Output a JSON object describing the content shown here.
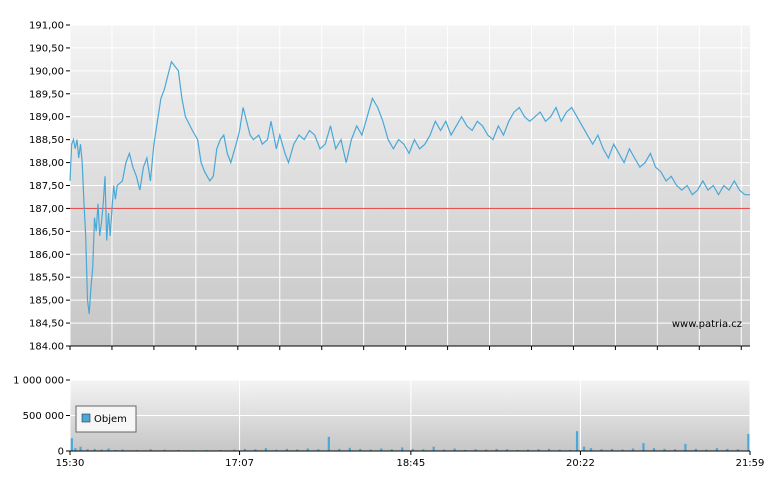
{
  "watermark": "www.patria.cz",
  "legend_label": "Objem",
  "colors": {
    "price_line": "#4aa8d8",
    "reference_line": "#e83a3a",
    "volume_bar": "#4aa8d8",
    "grid": "#ffffff",
    "plot_bg_top": "#f2f2f2",
    "plot_bg_bottom": "#c8c8c8"
  },
  "chart_data": [
    {
      "type": "line",
      "title": "",
      "xlabel": "",
      "ylabel": "",
      "ylim": [
        184.0,
        191.0
      ],
      "y_ticks": [
        "184.00",
        "184,50",
        "185,00",
        "185,50",
        "186,00",
        "186,50",
        "187,00",
        "187,50",
        "188,00",
        "188,50",
        "189,00",
        "189,50",
        "190,00",
        "190,50",
        "191,00"
      ],
      "y_tick_values": [
        184.0,
        184.5,
        185.0,
        185.5,
        186.0,
        186.5,
        187.0,
        187.5,
        188.0,
        188.5,
        189.0,
        189.5,
        190.0,
        190.5,
        191.0
      ],
      "x_ticks": [
        "15:30",
        "17:07",
        "18:45",
        "20:22",
        "21:59"
      ],
      "xlim": [
        "15:30",
        "21:59"
      ],
      "reference_line": 187.0,
      "grid": true,
      "series": [
        {
          "points": [
            [
              "15:30",
              187.6
            ],
            [
              "15:31",
              188.4
            ],
            [
              "15:32",
              188.5
            ],
            [
              "15:33",
              188.3
            ],
            [
              "15:34",
              188.5
            ],
            [
              "15:35",
              188.1
            ],
            [
              "15:36",
              188.4
            ],
            [
              "15:37",
              188.0
            ],
            [
              "15:38",
              187.1
            ],
            [
              "15:39",
              186.4
            ],
            [
              "15:40",
              185.0
            ],
            [
              "15:41",
              184.7
            ],
            [
              "15:42",
              185.3
            ],
            [
              "15:43",
              185.7
            ],
            [
              "15:44",
              186.8
            ],
            [
              "15:45",
              186.5
            ],
            [
              "15:46",
              187.1
            ],
            [
              "15:47",
              186.4
            ],
            [
              "15:48",
              186.7
            ],
            [
              "15:49",
              187.1
            ],
            [
              "15:50",
              187.7
            ],
            [
              "15:51",
              186.3
            ],
            [
              "15:52",
              186.9
            ],
            [
              "15:53",
              186.4
            ],
            [
              "15:54",
              187.0
            ],
            [
              "15:55",
              187.5
            ],
            [
              "15:56",
              187.2
            ],
            [
              "15:57",
              187.5
            ],
            [
              "16:00",
              187.6
            ],
            [
              "16:02",
              188.0
            ],
            [
              "16:04",
              188.2
            ],
            [
              "16:06",
              187.9
            ],
            [
              "16:08",
              187.7
            ],
            [
              "16:10",
              187.4
            ],
            [
              "16:12",
              187.9
            ],
            [
              "16:14",
              188.1
            ],
            [
              "16:16",
              187.6
            ],
            [
              "16:18",
              188.4
            ],
            [
              "16:20",
              188.9
            ],
            [
              "16:22",
              189.4
            ],
            [
              "16:24",
              189.6
            ],
            [
              "16:26",
              189.9
            ],
            [
              "16:28",
              190.2
            ],
            [
              "16:30",
              190.1
            ],
            [
              "16:32",
              190.0
            ],
            [
              "16:34",
              189.4
            ],
            [
              "16:36",
              189.0
            ],
            [
              "16:40",
              188.7
            ],
            [
              "16:43",
              188.5
            ],
            [
              "16:45",
              188.0
            ],
            [
              "16:47",
              187.8
            ],
            [
              "16:50",
              187.6
            ],
            [
              "16:52",
              187.7
            ],
            [
              "16:54",
              188.3
            ],
            [
              "16:56",
              188.5
            ],
            [
              "16:58",
              188.6
            ],
            [
              "17:00",
              188.2
            ],
            [
              "17:02",
              188.0
            ],
            [
              "17:05",
              188.4
            ],
            [
              "17:07",
              188.7
            ],
            [
              "17:09",
              189.2
            ],
            [
              "17:11",
              188.9
            ],
            [
              "17:13",
              188.6
            ],
            [
              "17:15",
              188.5
            ],
            [
              "17:18",
              188.6
            ],
            [
              "17:20",
              188.4
            ],
            [
              "17:23",
              188.5
            ],
            [
              "17:25",
              188.9
            ],
            [
              "17:28",
              188.3
            ],
            [
              "17:30",
              188.6
            ],
            [
              "17:33",
              188.2
            ],
            [
              "17:35",
              188.0
            ],
            [
              "17:38",
              188.4
            ],
            [
              "17:41",
              188.6
            ],
            [
              "17:44",
              188.5
            ],
            [
              "17:47",
              188.7
            ],
            [
              "17:50",
              188.6
            ],
            [
              "17:53",
              188.3
            ],
            [
              "17:56",
              188.4
            ],
            [
              "17:59",
              188.8
            ],
            [
              "18:02",
              188.3
            ],
            [
              "18:05",
              188.5
            ],
            [
              "18:08",
              188.0
            ],
            [
              "18:11",
              188.5
            ],
            [
              "18:14",
              188.8
            ],
            [
              "18:17",
              188.6
            ],
            [
              "18:20",
              189.0
            ],
            [
              "18:23",
              189.4
            ],
            [
              "18:26",
              189.2
            ],
            [
              "18:29",
              188.9
            ],
            [
              "18:32",
              188.5
            ],
            [
              "18:35",
              188.3
            ],
            [
              "18:38",
              188.5
            ],
            [
              "18:41",
              188.4
            ],
            [
              "18:44",
              188.2
            ],
            [
              "18:47",
              188.5
            ],
            [
              "18:50",
              188.3
            ],
            [
              "18:53",
              188.4
            ],
            [
              "18:56",
              188.6
            ],
            [
              "18:59",
              188.9
            ],
            [
              "19:02",
              188.7
            ],
            [
              "19:05",
              188.9
            ],
            [
              "19:08",
              188.6
            ],
            [
              "19:11",
              188.8
            ],
            [
              "19:14",
              189.0
            ],
            [
              "19:17",
              188.8
            ],
            [
              "19:20",
              188.7
            ],
            [
              "19:23",
              188.9
            ],
            [
              "19:26",
              188.8
            ],
            [
              "19:29",
              188.6
            ],
            [
              "19:32",
              188.5
            ],
            [
              "19:35",
              188.8
            ],
            [
              "19:38",
              188.6
            ],
            [
              "19:41",
              188.9
            ],
            [
              "19:44",
              189.1
            ],
            [
              "19:47",
              189.2
            ],
            [
              "19:50",
              189.0
            ],
            [
              "19:53",
              188.9
            ],
            [
              "19:56",
              189.0
            ],
            [
              "19:59",
              189.1
            ],
            [
              "20:02",
              188.9
            ],
            [
              "20:05",
              189.0
            ],
            [
              "20:08",
              189.2
            ],
            [
              "20:11",
              188.9
            ],
            [
              "20:14",
              189.1
            ],
            [
              "20:17",
              189.2
            ],
            [
              "20:20",
              189.0
            ],
            [
              "20:23",
              188.8
            ],
            [
              "20:26",
              188.6
            ],
            [
              "20:29",
              188.4
            ],
            [
              "20:32",
              188.6
            ],
            [
              "20:35",
              188.3
            ],
            [
              "20:38",
              188.1
            ],
            [
              "20:41",
              188.4
            ],
            [
              "20:44",
              188.2
            ],
            [
              "20:47",
              188.0
            ],
            [
              "20:50",
              188.3
            ],
            [
              "20:53",
              188.1
            ],
            [
              "20:56",
              187.9
            ],
            [
              "20:59",
              188.0
            ],
            [
              "21:02",
              188.2
            ],
            [
              "21:05",
              187.9
            ],
            [
              "21:08",
              187.8
            ],
            [
              "21:11",
              187.6
            ],
            [
              "21:14",
              187.7
            ],
            [
              "21:17",
              187.5
            ],
            [
              "21:20",
              187.4
            ],
            [
              "21:23",
              187.5
            ],
            [
              "21:26",
              187.3
            ],
            [
              "21:29",
              187.4
            ],
            [
              "21:32",
              187.6
            ],
            [
              "21:35",
              187.4
            ],
            [
              "21:38",
              187.5
            ],
            [
              "21:41",
              187.3
            ],
            [
              "21:44",
              187.5
            ],
            [
              "21:47",
              187.4
            ],
            [
              "21:50",
              187.6
            ],
            [
              "21:53",
              187.4
            ],
            [
              "21:56",
              187.3
            ],
            [
              "21:59",
              187.3
            ]
          ]
        }
      ]
    },
    {
      "type": "bar",
      "title": "",
      "xlabel": "",
      "ylabel": "",
      "ylim": [
        0,
        1000000
      ],
      "y_ticks": [
        "0",
        "500 000",
        "1 000 000"
      ],
      "y_tick_values": [
        0,
        500000,
        1000000
      ],
      "x_ticks": [
        "15:30",
        "17:07",
        "18:45",
        "20:22",
        "21:59"
      ],
      "xlim": [
        "15:30",
        "21:59"
      ],
      "grid": true,
      "series": [
        {
          "name": "Objem",
          "points": [
            [
              "15:31",
              180000
            ],
            [
              "15:33",
              40000
            ],
            [
              "15:36",
              60000
            ],
            [
              "15:40",
              25000
            ],
            [
              "15:44",
              30000
            ],
            [
              "15:48",
              20000
            ],
            [
              "15:52",
              35000
            ],
            [
              "15:56",
              15000
            ],
            [
              "16:00",
              20000
            ],
            [
              "16:08",
              12000
            ],
            [
              "16:16",
              25000
            ],
            [
              "16:24",
              18000
            ],
            [
              "16:32",
              14000
            ],
            [
              "16:40",
              10000
            ],
            [
              "16:48",
              12000
            ],
            [
              "16:56",
              15000
            ],
            [
              "17:04",
              20000
            ],
            [
              "17:10",
              30000
            ],
            [
              "17:16",
              25000
            ],
            [
              "17:22",
              40000
            ],
            [
              "17:28",
              18000
            ],
            [
              "17:34",
              30000
            ],
            [
              "17:40",
              22000
            ],
            [
              "17:46",
              35000
            ],
            [
              "17:52",
              25000
            ],
            [
              "17:58",
              200000
            ],
            [
              "18:04",
              30000
            ],
            [
              "18:10",
              45000
            ],
            [
              "18:16",
              30000
            ],
            [
              "18:22",
              20000
            ],
            [
              "18:28",
              35000
            ],
            [
              "18:34",
              25000
            ],
            [
              "18:40",
              50000
            ],
            [
              "18:46",
              30000
            ],
            [
              "18:52",
              25000
            ],
            [
              "18:58",
              60000
            ],
            [
              "19:04",
              20000
            ],
            [
              "19:10",
              35000
            ],
            [
              "19:16",
              15000
            ],
            [
              "19:22",
              25000
            ],
            [
              "19:28",
              20000
            ],
            [
              "19:34",
              30000
            ],
            [
              "19:40",
              25000
            ],
            [
              "19:46",
              15000
            ],
            [
              "19:52",
              20000
            ],
            [
              "19:58",
              25000
            ],
            [
              "20:04",
              30000
            ],
            [
              "20:10",
              20000
            ],
            [
              "20:16",
              15000
            ],
            [
              "20:20",
              280000
            ],
            [
              "20:24",
              60000
            ],
            [
              "20:28",
              40000
            ],
            [
              "20:34",
              25000
            ],
            [
              "20:40",
              30000
            ],
            [
              "20:46",
              20000
            ],
            [
              "20:52",
              35000
            ],
            [
              "20:58",
              110000
            ],
            [
              "21:04",
              40000
            ],
            [
              "21:10",
              30000
            ],
            [
              "21:16",
              25000
            ],
            [
              "21:22",
              100000
            ],
            [
              "21:28",
              30000
            ],
            [
              "21:34",
              20000
            ],
            [
              "21:40",
              40000
            ],
            [
              "21:46",
              30000
            ],
            [
              "21:52",
              25000
            ],
            [
              "21:58",
              240000
            ]
          ]
        }
      ]
    }
  ]
}
